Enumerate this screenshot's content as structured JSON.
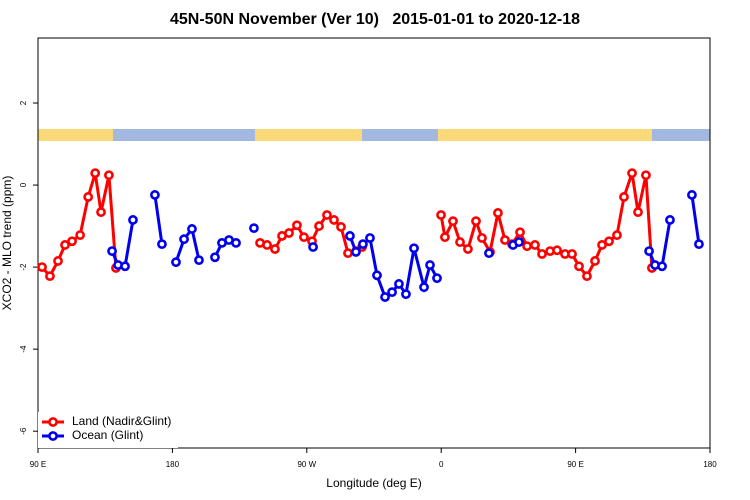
{
  "chart_data": {
    "type": "line",
    "title": "45N-50N November (Ver 10)   2015-01-01 to 2020-12-18",
    "xlabel": "Longitude (deg E)",
    "ylabel": "XCO2 - MLO trend (ppm)",
    "xlim": [
      90,
      540
    ],
    "ylim": [
      -6.41,
      3.585
    ],
    "xticks": [
      {
        "value": 90,
        "label": "90 E"
      },
      {
        "value": 180,
        "label": "180"
      },
      {
        "value": 270,
        "label": "90 W"
      },
      {
        "value": 360,
        "label": "0"
      },
      {
        "value": 450,
        "label": "90 E"
      },
      {
        "value": 540,
        "label": "180"
      }
    ],
    "yticks": [
      -6,
      -4,
      -2,
      0,
      2
    ],
    "legend": "bottomleft",
    "series": [
      {
        "name": "Land (Nadir&Glint)",
        "color": "#ff0000",
        "x": [
          92.7,
          98.0,
          103.4,
          108.1,
          112.8,
          118.2,
          123.6,
          128.3,
          132.2,
          137.5,
          142.2,
          null,
          238.7,
          243.4,
          248.7,
          253.4,
          258.1,
          263.4,
          268.1,
          273.5,
          278.2,
          283.5,
          288.2,
          292.9,
          297.6,
          303.0,
          307.0,
          null,
          359.9,
          362.5,
          367.9,
          372.6,
          377.9,
          383.3,
          387.3,
          392.7,
          398.0,
          402.7,
          407.4,
          412.8,
          417.5,
          422.8,
          427.5,
          432.9,
          437.6,
          442.9,
          447.6,
          452.3,
          457.6,
          463.0,
          467.7,
          472.4,
          477.7,
          482.4,
          487.8,
          491.8,
          497.1,
          501.1
        ],
        "values": [
          -2.0,
          -2.22,
          -1.85,
          -1.46,
          -1.37,
          -1.22,
          -0.29,
          0.29,
          -0.66,
          0.24,
          -2.02,
          null,
          -1.41,
          -1.46,
          -1.56,
          -1.24,
          -1.17,
          -0.98,
          -1.27,
          -1.37,
          -1.0,
          -0.73,
          -0.85,
          -1.02,
          -1.66,
          -1.61,
          -1.51,
          null,
          -0.73,
          -1.27,
          -0.88,
          -1.39,
          -1.56,
          -0.88,
          -1.29,
          -1.63,
          -0.68,
          -1.34,
          -1.44,
          -1.15,
          -1.49,
          -1.46,
          -1.68,
          -1.61,
          -1.59,
          -1.68,
          -1.68,
          -1.98,
          -2.22,
          -1.85,
          -1.46,
          -1.37,
          -1.22,
          -0.29,
          0.29,
          -0.66,
          0.24,
          -2.02
        ]
      },
      {
        "name": "Ocean (Glint)",
        "color": "#0000ee",
        "x": [
          139.6,
          143.6,
          148.3,
          153.6,
          null,
          168.3,
          173.0,
          null,
          182.4,
          187.8,
          193.1,
          197.8,
          null,
          208.5,
          213.2,
          217.9,
          222.6,
          null,
          234.6,
          null,
          274.2,
          null,
          298.9,
          302.9,
          307.6,
          312.3,
          317.0,
          322.4,
          327.1,
          331.7,
          336.4,
          341.8,
          348.5,
          352.5,
          357.2,
          null,
          392.0,
          null,
          408.1,
          412.1,
          null,
          499.2,
          503.2,
          507.9,
          513.2,
          null,
          527.9,
          532.6
        ],
        "values": [
          -1.61,
          -1.95,
          -1.98,
          -0.85,
          null,
          -0.24,
          -1.44,
          null,
          -1.88,
          -1.32,
          -1.07,
          -1.83,
          null,
          -1.76,
          -1.41,
          -1.34,
          -1.41,
          null,
          -1.05,
          null,
          -1.51,
          null,
          -1.24,
          -1.63,
          -1.44,
          -1.29,
          -2.2,
          -2.73,
          -2.61,
          -2.41,
          -2.66,
          -1.54,
          -2.49,
          -1.95,
          -2.27,
          null,
          -1.66,
          null,
          -1.46,
          -1.39,
          null,
          -1.61,
          -1.95,
          -1.98,
          -0.85,
          null,
          -0.24,
          -1.44
        ]
      }
    ]
  }
}
